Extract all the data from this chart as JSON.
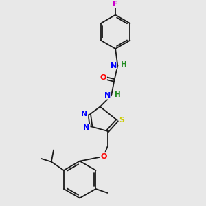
{
  "background_color": "#e8e8e8",
  "bond_color": "#1a1a1a",
  "atom_colors": {
    "F": "#cc00cc",
    "N": "#0000ff",
    "O": "#ff0000",
    "S": "#cccc00",
    "C": "#1a1a1a",
    "H": "#228b22"
  }
}
